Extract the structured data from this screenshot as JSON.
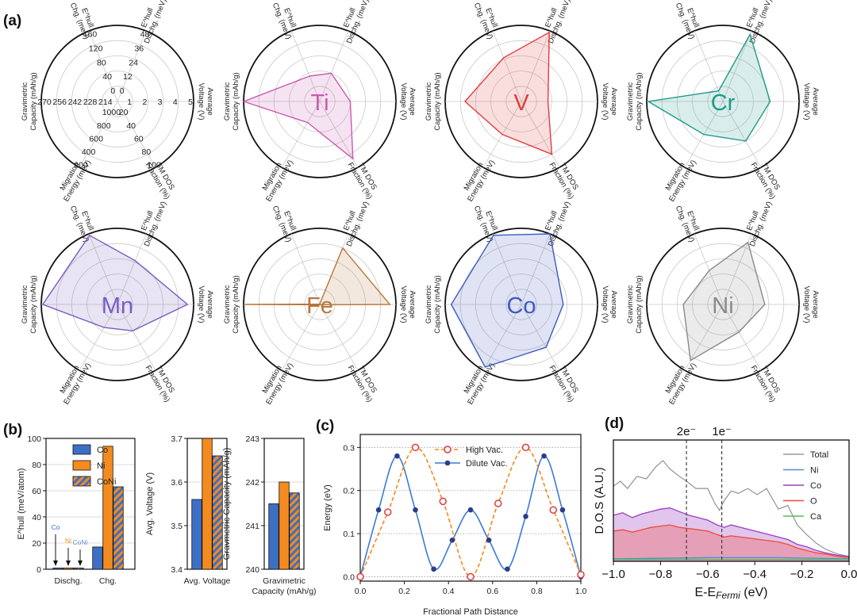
{
  "figure": {
    "panel_labels": {
      "a": "(a)",
      "b": "(b)",
      "c": "(c)",
      "d": "(d)"
    }
  },
  "colors": {
    "Ti": "#c95bb0",
    "V": "#e23b3b",
    "Cr": "#1e9a8a",
    "Mn": "#7a5cc0",
    "Fe": "#b8763c",
    "Co": "#3f5bbf",
    "Ni": "#8a8a8a",
    "bar_co": "#3d6fc5",
    "bar_ni": "#f48b1f",
    "c_orange": "#f28a1b",
    "c_blue": "#3a7bd5",
    "c_red": "#e03a3a",
    "c_dot": "#2b3c8c",
    "dos_total": "#999999",
    "dos_ni": "#4f8fd0",
    "dos_co": "#9b3fbf",
    "dos_o": "#f04a3a",
    "dos_ca": "#5cb85c"
  },
  "chart_data": [
    {
      "id": "a-key",
      "type": "radar",
      "spokes": [
        [
          "E^hull",
          "Chg. (meV)"
        ],
        [
          "E^hull",
          "Dischg. (meV)"
        ],
        [
          "Average",
          "Voltage (V)"
        ],
        [
          "TM DOS",
          "Fraction (%)"
        ],
        [
          "Migration",
          "Energy (meV)"
        ],
        [
          "Gravimetric",
          "Capacity (mAh/g)"
        ]
      ],
      "ring_ticks": [
        [
          "0",
          "40",
          "80",
          "120",
          "160"
        ],
        [
          "0",
          "12",
          "24",
          "36",
          "48"
        ],
        [
          "1",
          "2",
          "3",
          "4",
          "5"
        ],
        [
          "20",
          "40",
          "60",
          "80",
          "100"
        ],
        [
          "1000",
          "800",
          "600",
          "400",
          "200"
        ],
        [
          "214",
          "228",
          "242",
          "256",
          "270"
        ]
      ]
    },
    {
      "id": "a-Ti",
      "type": "radar",
      "element": "Ti",
      "values": [
        0.36,
        0.4,
        0.4,
        0.87,
        0.32,
        1.0
      ]
    },
    {
      "id": "a-V",
      "type": "radar",
      "element": "V",
      "values": [
        0.62,
        0.98,
        0.35,
        0.8,
        0.5,
        0.74
      ]
    },
    {
      "id": "a-Cr",
      "type": "radar",
      "element": "Cr",
      "values": [
        0.15,
        0.95,
        0.62,
        0.6,
        0.5,
        0.98
      ]
    },
    {
      "id": "a-Mn",
      "type": "radar",
      "element": "Mn",
      "values": [
        0.98,
        0.62,
        0.92,
        0.4,
        0.35,
        0.98
      ]
    },
    {
      "id": "a-Fe",
      "type": "radar",
      "element": "Fe",
      "values": [
        0.0,
        0.8,
        0.92,
        0.0,
        0.0,
        1.0
      ]
    },
    {
      "id": "a-Co",
      "type": "radar",
      "element": "Co",
      "values": [
        0.98,
        1.0,
        0.55,
        0.65,
        0.95,
        0.92
      ]
    },
    {
      "id": "a-Ni",
      "type": "radar",
      "element": "Ni",
      "values": [
        0.48,
        0.88,
        0.55,
        0.42,
        0.85,
        0.52
      ]
    },
    {
      "id": "b1",
      "type": "bar",
      "ylabel": "E^hull (meV/atom)",
      "ylim": [
        0,
        100
      ],
      "yticks": [
        "0",
        "20",
        "40",
        "60",
        "80",
        "100"
      ],
      "categories": [
        "Dischg.",
        "Chg."
      ],
      "series": [
        {
          "name": "Co",
          "values": [
            0,
            17
          ]
        },
        {
          "name": "Ni",
          "values": [
            0,
            94
          ]
        },
        {
          "name": "CoNi",
          "values": [
            0,
            63
          ]
        }
      ],
      "arrow_labels": [
        "Co",
        "Ni",
        "CoNi"
      ]
    },
    {
      "id": "b2",
      "type": "bar",
      "ylabel": "Avg. Voltage (V)",
      "ylim": [
        3.4,
        3.7
      ],
      "yticks": [
        "3.4",
        "3.5",
        "3.6",
        "3.7"
      ],
      "categories": [
        "Avg. Voltage"
      ],
      "series": [
        {
          "name": "Co",
          "values": [
            3.56
          ]
        },
        {
          "name": "Ni",
          "values": [
            3.7
          ]
        },
        {
          "name": "CoNi",
          "values": [
            3.66
          ]
        }
      ]
    },
    {
      "id": "b3",
      "type": "bar",
      "ylabel": "Gravmetric Capacity (mAh/g)",
      "ylim": [
        240,
        243
      ],
      "yticks": [
        "240",
        "241",
        "242",
        "243"
      ],
      "categories_lines": [
        "Gravimetric",
        "Capacity (mAh/g)"
      ],
      "series": [
        {
          "name": "Co",
          "values": [
            241.5
          ]
        },
        {
          "name": "Ni",
          "values": [
            242.0
          ]
        },
        {
          "name": "CoNi",
          "values": [
            241.75
          ]
        }
      ]
    },
    {
      "id": "c",
      "type": "line",
      "xlabel": "Fractional Path Distance",
      "ylabel": "Energy (eV)",
      "xlim": [
        0,
        1
      ],
      "ylim": [
        -0.01,
        0.33
      ],
      "xticks": [
        "0.0",
        "0.2",
        "0.4",
        "0.6",
        "0.8",
        "1.0"
      ],
      "yticks": [
        "0.0",
        "0.1",
        "0.2",
        "0.3"
      ],
      "series": [
        {
          "name": "High Vac.",
          "x": [
            0,
            0.125,
            0.25,
            0.375,
            0.5,
            0.625,
            0.75,
            0.875,
            1.0
          ],
          "y": [
            0.0,
            0.15,
            0.3,
            0.175,
            0.0,
            0.17,
            0.3,
            0.155,
            0.005
          ]
        },
        {
          "name": "Dilute Vac.",
          "x": [
            0,
            0.083,
            0.167,
            0.25,
            0.333,
            0.417,
            0.5,
            0.583,
            0.667,
            0.75,
            0.833,
            0.917,
            1.0
          ],
          "y": [
            0.0,
            0.155,
            0.28,
            0.155,
            0.018,
            0.085,
            0.155,
            0.085,
            0.018,
            0.14,
            0.28,
            0.155,
            0.0
          ]
        }
      ]
    },
    {
      "id": "d",
      "type": "area",
      "xlabel": "E-E",
      "xlabel_sub": "Fermi",
      "xlabel_unit": " (eV)",
      "ylabel": "D.O.S (A.U.)",
      "xlim": [
        -1.0,
        0.0
      ],
      "xticks": [
        "−1.0",
        "−0.8",
        "−0.6",
        "−0.4",
        "−0.2",
        "0.0"
      ],
      "markers": [
        {
          "x": -0.69,
          "label": "2e⁻"
        },
        {
          "x": -0.54,
          "label": "1e⁻"
        }
      ],
      "series": [
        {
          "name": "Total",
          "x": [
            -1.0,
            -0.97,
            -0.94,
            -0.9,
            -0.86,
            -0.82,
            -0.79,
            -0.76,
            -0.72,
            -0.69,
            -0.65,
            -0.6,
            -0.57,
            -0.55,
            -0.53,
            -0.5,
            -0.47,
            -0.43,
            -0.39,
            -0.35,
            -0.3,
            -0.26,
            -0.22,
            -0.18,
            -0.14,
            -0.1,
            -0.05,
            0.0
          ],
          "y": [
            0.62,
            0.66,
            0.6,
            0.7,
            0.68,
            0.78,
            0.83,
            0.76,
            0.7,
            0.66,
            0.6,
            0.6,
            0.48,
            0.42,
            0.5,
            0.58,
            0.56,
            0.6,
            0.55,
            0.6,
            0.43,
            0.46,
            0.3,
            0.22,
            0.15,
            0.1,
            0.06,
            0.04
          ]
        },
        {
          "name": "Ni",
          "x": [
            -1.0,
            -0.6,
            -0.3,
            0.0
          ],
          "y": [
            0.02,
            0.03,
            0.03,
            0.02
          ]
        },
        {
          "name": "Co",
          "x": [
            -1.0,
            -0.96,
            -0.92,
            -0.88,
            -0.84,
            -0.8,
            -0.76,
            -0.72,
            -0.68,
            -0.64,
            -0.6,
            -0.56,
            -0.53,
            -0.5,
            -0.46,
            -0.42,
            -0.38,
            -0.34,
            -0.3,
            -0.26,
            -0.22,
            -0.18,
            -0.14,
            -0.1,
            -0.05,
            0.0
          ],
          "y": [
            0.38,
            0.4,
            0.36,
            0.39,
            0.41,
            0.43,
            0.44,
            0.41,
            0.38,
            0.36,
            0.34,
            0.3,
            0.28,
            0.3,
            0.28,
            0.26,
            0.24,
            0.22,
            0.2,
            0.18,
            0.14,
            0.12,
            0.09,
            0.07,
            0.05,
            0.04
          ]
        },
        {
          "name": "O",
          "x": [
            -1.0,
            -0.96,
            -0.92,
            -0.88,
            -0.84,
            -0.8,
            -0.76,
            -0.72,
            -0.68,
            -0.64,
            -0.6,
            -0.56,
            -0.53,
            -0.5,
            -0.46,
            -0.42,
            -0.38,
            -0.34,
            -0.3,
            -0.26,
            -0.22,
            -0.18,
            -0.14,
            -0.1,
            -0.05,
            0.0
          ],
          "y": [
            0.25,
            0.26,
            0.24,
            0.26,
            0.28,
            0.29,
            0.3,
            0.28,
            0.27,
            0.26,
            0.25,
            0.22,
            0.2,
            0.21,
            0.2,
            0.19,
            0.18,
            0.17,
            0.16,
            0.14,
            0.11,
            0.09,
            0.07,
            0.06,
            0.04,
            0.03
          ]
        },
        {
          "name": "Ca",
          "x": [
            -1.0,
            -0.5,
            0.0
          ],
          "y": [
            0.015,
            0.015,
            0.015
          ]
        }
      ]
    }
  ]
}
